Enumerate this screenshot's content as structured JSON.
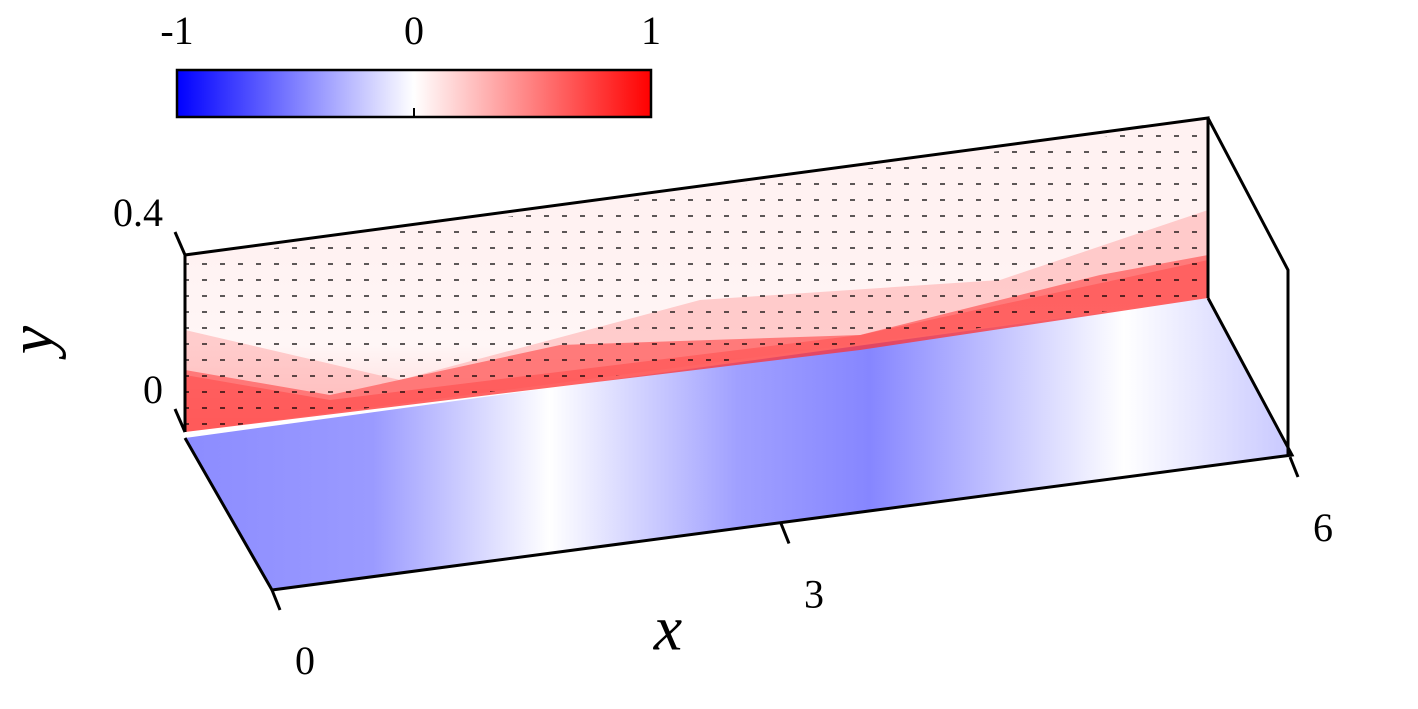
{
  "chart_data": {
    "type": "field3d",
    "xlabel": "x",
    "ylabel": "y",
    "xlim": [
      0,
      6
    ],
    "xticks": [
      0,
      3,
      6
    ],
    "ylim": [
      0,
      0.4
    ],
    "yticks": [
      0,
      0.4
    ],
    "colorbar": {
      "lim": [
        -1,
        1
      ],
      "ticks": [
        -1,
        0,
        1
      ],
      "colors": [
        "#0000ff",
        "#ffffff",
        "#ff0000"
      ]
    }
  }
}
